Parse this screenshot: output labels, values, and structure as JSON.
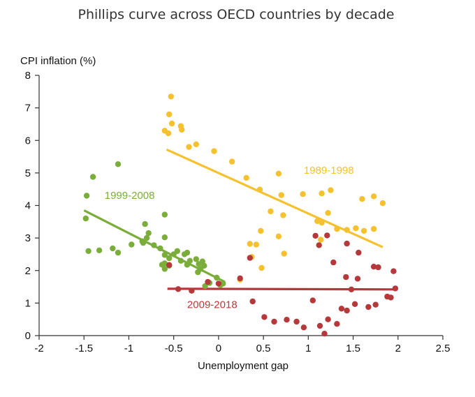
{
  "chart_data": {
    "type": "scatter",
    "title": "Phillips curve across OECD countries by decade",
    "xlabel": "Unemployment gap",
    "ylabel": "CPI inflation (%)",
    "xlim": [
      -2,
      2.5
    ],
    "ylim": [
      0,
      8
    ],
    "xticks": [
      -2,
      -1.5,
      -1,
      -0.5,
      0,
      0.5,
      1,
      1.5,
      2,
      2.5
    ],
    "xtick_labels": [
      "-2",
      "-1.5",
      "-1",
      "-0.5",
      "0",
      "0.5",
      "1",
      "1.5",
      "2",
      "2.5"
    ],
    "yticks": [
      0,
      1,
      2,
      3,
      4,
      5,
      6,
      7,
      8
    ],
    "ytick_labels": [
      "0",
      "1",
      "2",
      "3",
      "4",
      "5",
      "6",
      "7",
      "8"
    ],
    "grid": false,
    "series": [
      {
        "name": "1989-1998",
        "color": "#f5c12e",
        "label_pos": [
          0.95,
          4.98
        ],
        "fit": [
          [
            -0.58,
            5.72
          ],
          [
            1.83,
            2.72
          ]
        ],
        "points": [
          [
            -0.53,
            7.35
          ],
          [
            -0.55,
            6.8
          ],
          [
            -0.52,
            6.52
          ],
          [
            -0.6,
            6.3
          ],
          [
            -0.56,
            6.22
          ],
          [
            -0.42,
            6.44
          ],
          [
            -0.41,
            6.33
          ],
          [
            -0.33,
            5.8
          ],
          [
            -0.25,
            5.88
          ],
          [
            -0.05,
            5.67
          ],
          [
            0.15,
            5.35
          ],
          [
            0.31,
            4.85
          ],
          [
            0.46,
            4.49
          ],
          [
            0.67,
            4.98
          ],
          [
            0.7,
            4.32
          ],
          [
            0.94,
            4.35
          ],
          [
            1.15,
            4.37
          ],
          [
            1.25,
            4.47
          ],
          [
            1.6,
            4.2
          ],
          [
            1.73,
            4.28
          ],
          [
            1.83,
            4.07
          ],
          [
            1.53,
            3.3
          ],
          [
            1.62,
            3.22
          ],
          [
            1.73,
            3.28
          ],
          [
            1.43,
            3.25
          ],
          [
            1.32,
            3.28
          ],
          [
            1.22,
            3.77
          ],
          [
            1.1,
            3.52
          ],
          [
            0.58,
            3.82
          ],
          [
            0.72,
            3.7
          ],
          [
            0.47,
            3.22
          ],
          [
            0.35,
            2.82
          ],
          [
            0.42,
            2.8
          ],
          [
            0.67,
            3.05
          ],
          [
            0.73,
            2.52
          ],
          [
            0.48,
            2.08
          ],
          [
            0.24,
            1.72
          ],
          [
            0.37,
            2.42
          ],
          [
            1.15,
            3.47
          ],
          [
            1.14,
            2.95
          ]
        ]
      },
      {
        "name": "1999-2008",
        "color": "#7aad3a",
        "label_pos": [
          -1.27,
          4.2
        ],
        "fit": [
          [
            -1.5,
            3.85
          ],
          [
            0.07,
            1.65
          ]
        ],
        "points": [
          [
            -1.47,
            4.3
          ],
          [
            -1.4,
            4.88
          ],
          [
            -1.12,
            5.27
          ],
          [
            -1.48,
            3.6
          ],
          [
            -1.45,
            2.6
          ],
          [
            -1.33,
            2.62
          ],
          [
            -1.18,
            2.68
          ],
          [
            -1.12,
            2.55
          ],
          [
            -0.97,
            2.8
          ],
          [
            -0.85,
            2.9
          ],
          [
            -0.78,
            3.15
          ],
          [
            -0.8,
            3.0
          ],
          [
            -0.84,
            2.85
          ],
          [
            -0.82,
            3.43
          ],
          [
            -0.72,
            2.78
          ],
          [
            -0.6,
            3.72
          ],
          [
            -0.6,
            3.02
          ],
          [
            -0.65,
            2.68
          ],
          [
            -0.6,
            2.48
          ],
          [
            -0.55,
            2.38
          ],
          [
            -0.5,
            2.5
          ],
          [
            -0.46,
            2.6
          ],
          [
            -0.38,
            2.5
          ],
          [
            -0.35,
            2.55
          ],
          [
            -0.32,
            2.3
          ],
          [
            -0.42,
            2.3
          ],
          [
            -0.35,
            2.18
          ],
          [
            -0.25,
            2.35
          ],
          [
            -0.22,
            2.2
          ],
          [
            -0.18,
            2.28
          ],
          [
            -0.16,
            2.15
          ],
          [
            -0.23,
            1.95
          ],
          [
            -0.2,
            2.05
          ],
          [
            -0.63,
            2.18
          ],
          [
            -0.6,
            2.05
          ],
          [
            -0.02,
            1.78
          ],
          [
            0.05,
            1.6
          ],
          [
            -0.15,
            1.52
          ],
          [
            -0.6,
            2.22
          ],
          [
            -0.55,
            2.15
          ],
          [
            -0.1,
            1.62
          ],
          [
            0.02,
            1.55
          ]
        ]
      },
      {
        "name": "2009-2018",
        "color": "#b5383a",
        "label_pos": [
          -0.35,
          0.85
        ],
        "fit": [
          [
            -0.57,
            1.44
          ],
          [
            1.99,
            1.42
          ]
        ],
        "points": [
          [
            -0.55,
            2.17
          ],
          [
            -0.45,
            1.43
          ],
          [
            -0.3,
            1.38
          ],
          [
            -0.12,
            1.65
          ],
          [
            0.0,
            1.6
          ],
          [
            0.24,
            1.76
          ],
          [
            0.35,
            2.39
          ],
          [
            0.38,
            1.05
          ],
          [
            0.51,
            0.57
          ],
          [
            0.62,
            0.43
          ],
          [
            0.76,
            0.49
          ],
          [
            0.87,
            0.43
          ],
          [
            0.95,
            0.25
          ],
          [
            1.05,
            1.08
          ],
          [
            1.13,
            0.3
          ],
          [
            1.18,
            0.06
          ],
          [
            1.22,
            0.5
          ],
          [
            1.32,
            0.36
          ],
          [
            1.37,
            0.83
          ],
          [
            1.43,
            0.77
          ],
          [
            1.52,
            0.97
          ],
          [
            1.67,
            0.88
          ],
          [
            1.75,
            0.95
          ],
          [
            1.88,
            1.2
          ],
          [
            1.92,
            1.17
          ],
          [
            1.97,
            1.45
          ],
          [
            1.95,
            1.98
          ],
          [
            1.73,
            2.12
          ],
          [
            1.78,
            2.1
          ],
          [
            1.56,
            2.55
          ],
          [
            1.43,
            2.83
          ],
          [
            1.28,
            2.25
          ],
          [
            1.12,
            2.78
          ],
          [
            1.08,
            3.07
          ],
          [
            1.21,
            3.08
          ],
          [
            1.42,
            1.8
          ],
          [
            1.55,
            1.75
          ],
          [
            1.48,
            1.42
          ]
        ]
      }
    ]
  }
}
